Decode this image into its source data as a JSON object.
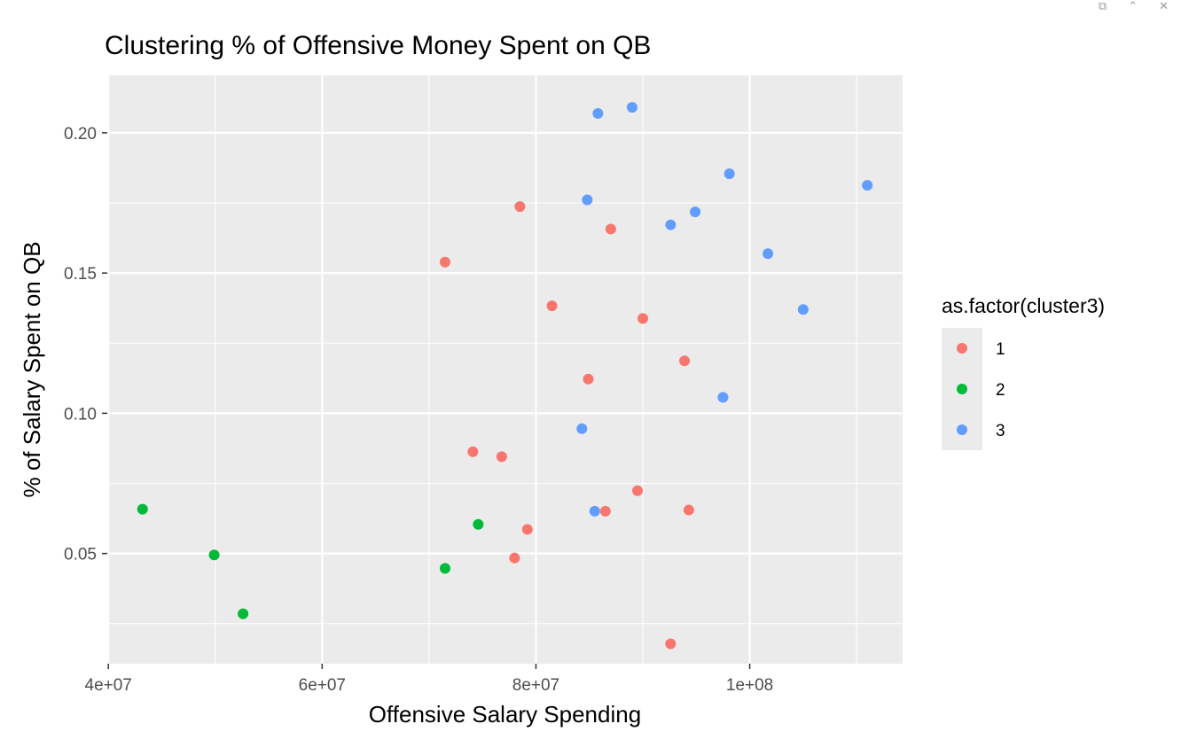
{
  "window": {
    "controls": [
      {
        "name": "popout-icon",
        "glyph": "⧉"
      },
      {
        "name": "collapse-icon",
        "glyph": "⌃"
      },
      {
        "name": "close-icon",
        "glyph": "✕"
      }
    ]
  },
  "chart_data": {
    "type": "scatter",
    "title": "Clustering % of Offensive Money Spent on QB",
    "xlabel": "Offensive Salary Spending",
    "ylabel": "% of Salary Spent on QB",
    "xlim": [
      39900000,
      114300000
    ],
    "ylim": [
      0.0107,
      0.2205
    ],
    "x_ticks": [
      {
        "value": 40000000,
        "label": "4e+07"
      },
      {
        "value": 60000000,
        "label": "6e+07"
      },
      {
        "value": 80000000,
        "label": "8e+07"
      },
      {
        "value": 100000000,
        "label": "1e+08"
      }
    ],
    "y_ticks": [
      {
        "value": 0.05,
        "label": "0.05"
      },
      {
        "value": 0.1,
        "label": "0.10"
      },
      {
        "value": 0.15,
        "label": "0.15"
      },
      {
        "value": 0.2,
        "label": "0.20"
      }
    ],
    "grid": true,
    "background": "#ebebeb",
    "legend": {
      "title": "as.factor(cluster3)",
      "position": "right",
      "items": [
        {
          "label": "1",
          "color": "#f8766d"
        },
        {
          "label": "2",
          "color": "#00ba38"
        },
        {
          "label": "3",
          "color": "#619cff"
        }
      ]
    },
    "series": [
      {
        "name": "1",
        "color": "#f8766d",
        "points": [
          {
            "x": 78500000,
            "y": 0.1737
          },
          {
            "x": 87000000,
            "y": 0.1657
          },
          {
            "x": 71500000,
            "y": 0.1539
          },
          {
            "x": 81500000,
            "y": 0.1383
          },
          {
            "x": 90000000,
            "y": 0.1338
          },
          {
            "x": 93900000,
            "y": 0.1187
          },
          {
            "x": 84900000,
            "y": 0.1122
          },
          {
            "x": 74100000,
            "y": 0.0863
          },
          {
            "x": 76800000,
            "y": 0.0845
          },
          {
            "x": 89500000,
            "y": 0.0724
          },
          {
            "x": 86500000,
            "y": 0.0651
          },
          {
            "x": 94300000,
            "y": 0.0655
          },
          {
            "x": 79200000,
            "y": 0.0586
          },
          {
            "x": 78000000,
            "y": 0.0484
          },
          {
            "x": 92600000,
            "y": 0.0178
          }
        ]
      },
      {
        "name": "2",
        "color": "#00ba38",
        "points": [
          {
            "x": 43200000,
            "y": 0.0658
          },
          {
            "x": 49900000,
            "y": 0.0495
          },
          {
            "x": 52600000,
            "y": 0.0285
          },
          {
            "x": 71500000,
            "y": 0.0447
          },
          {
            "x": 74600000,
            "y": 0.0604
          }
        ]
      },
      {
        "name": "3",
        "color": "#619cff",
        "points": [
          {
            "x": 85800000,
            "y": 0.2069
          },
          {
            "x": 89000000,
            "y": 0.2091
          },
          {
            "x": 98100000,
            "y": 0.1854
          },
          {
            "x": 111000000,
            "y": 0.1813
          },
          {
            "x": 84800000,
            "y": 0.1761
          },
          {
            "x": 94900000,
            "y": 0.1718
          },
          {
            "x": 92600000,
            "y": 0.1672
          },
          {
            "x": 101700000,
            "y": 0.1569
          },
          {
            "x": 105000000,
            "y": 0.137
          },
          {
            "x": 97500000,
            "y": 0.1057
          },
          {
            "x": 84300000,
            "y": 0.0945
          },
          {
            "x": 85500000,
            "y": 0.0651
          }
        ]
      }
    ]
  }
}
